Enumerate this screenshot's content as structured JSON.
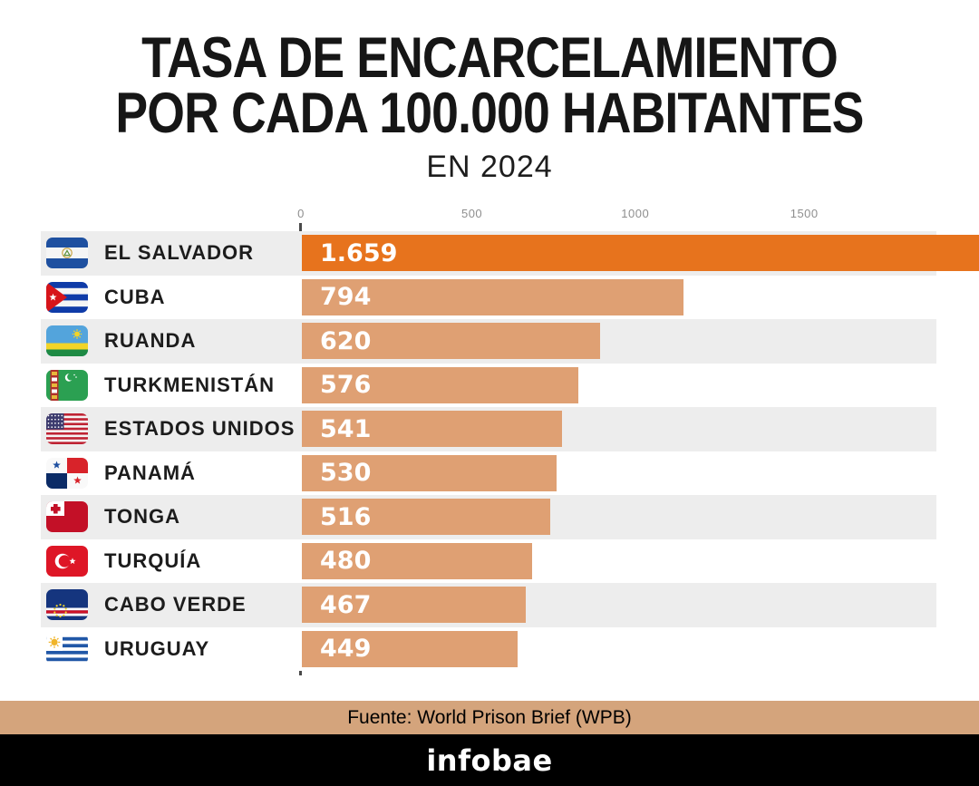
{
  "title": {
    "line1": "TASA DE ENCARCELAMIENTO",
    "line2": "POR CADA 100.000 HABITANTES",
    "subtitle": "EN 2024"
  },
  "chart_data": {
    "type": "bar",
    "orientation": "horizontal",
    "title": "Tasa de encarcelamiento por cada 100.000 habitantes en 2024",
    "xlabel": "",
    "ylabel": "",
    "axis": {
      "tick_labels": [
        "0",
        "500",
        "1000",
        "1500"
      ],
      "tick_positions_pct": [
        0,
        26.9,
        52.6,
        79.2
      ],
      "xlim": [
        0,
        1860
      ],
      "grid": false
    },
    "colors": {
      "highlight_bar": "#e7731d",
      "bar": "#dfa073",
      "row_alt_bg": "#ededed",
      "axis_line": "#4a4a4a"
    },
    "rows": [
      {
        "country": "EL SALVADOR",
        "value": 1659,
        "value_label": "1.659",
        "flag": "el-salvador",
        "highlight": true,
        "bar_pct": 97.6
      },
      {
        "country": "CUBA",
        "value": 794,
        "value_label": "794",
        "flag": "cuba",
        "highlight": false,
        "bar_pct": 42.6
      },
      {
        "country": "RUANDA",
        "value": 620,
        "value_label": "620",
        "flag": "ruanda",
        "highlight": false,
        "bar_pct": 33.3
      },
      {
        "country": "TURKMENISTÁN",
        "value": 576,
        "value_label": "576",
        "flag": "turkmenistan",
        "highlight": false,
        "bar_pct": 30.9
      },
      {
        "country": "ESTADOS UNIDOS",
        "value": 541,
        "value_label": "541",
        "flag": "estados-unidos",
        "highlight": false,
        "bar_pct": 29.0
      },
      {
        "country": "PANAMÁ",
        "value": 530,
        "value_label": "530",
        "flag": "panama",
        "highlight": false,
        "bar_pct": 28.4
      },
      {
        "country": "TONGA",
        "value": 516,
        "value_label": "516",
        "flag": "tonga",
        "highlight": false,
        "bar_pct": 27.7
      },
      {
        "country": "TURQUÍA",
        "value": 480,
        "value_label": "480",
        "flag": "turquia",
        "highlight": false,
        "bar_pct": 25.7
      },
      {
        "country": "CABO VERDE",
        "value": 467,
        "value_label": "467",
        "flag": "cabo-verde",
        "highlight": false,
        "bar_pct": 25.0
      },
      {
        "country": "URUGUAY",
        "value": 449,
        "value_label": "449",
        "flag": "uruguay",
        "highlight": false,
        "bar_pct": 24.1
      }
    ]
  },
  "footer": {
    "source": "Fuente: World Prison Brief (WPB)",
    "brand": "infobae"
  }
}
